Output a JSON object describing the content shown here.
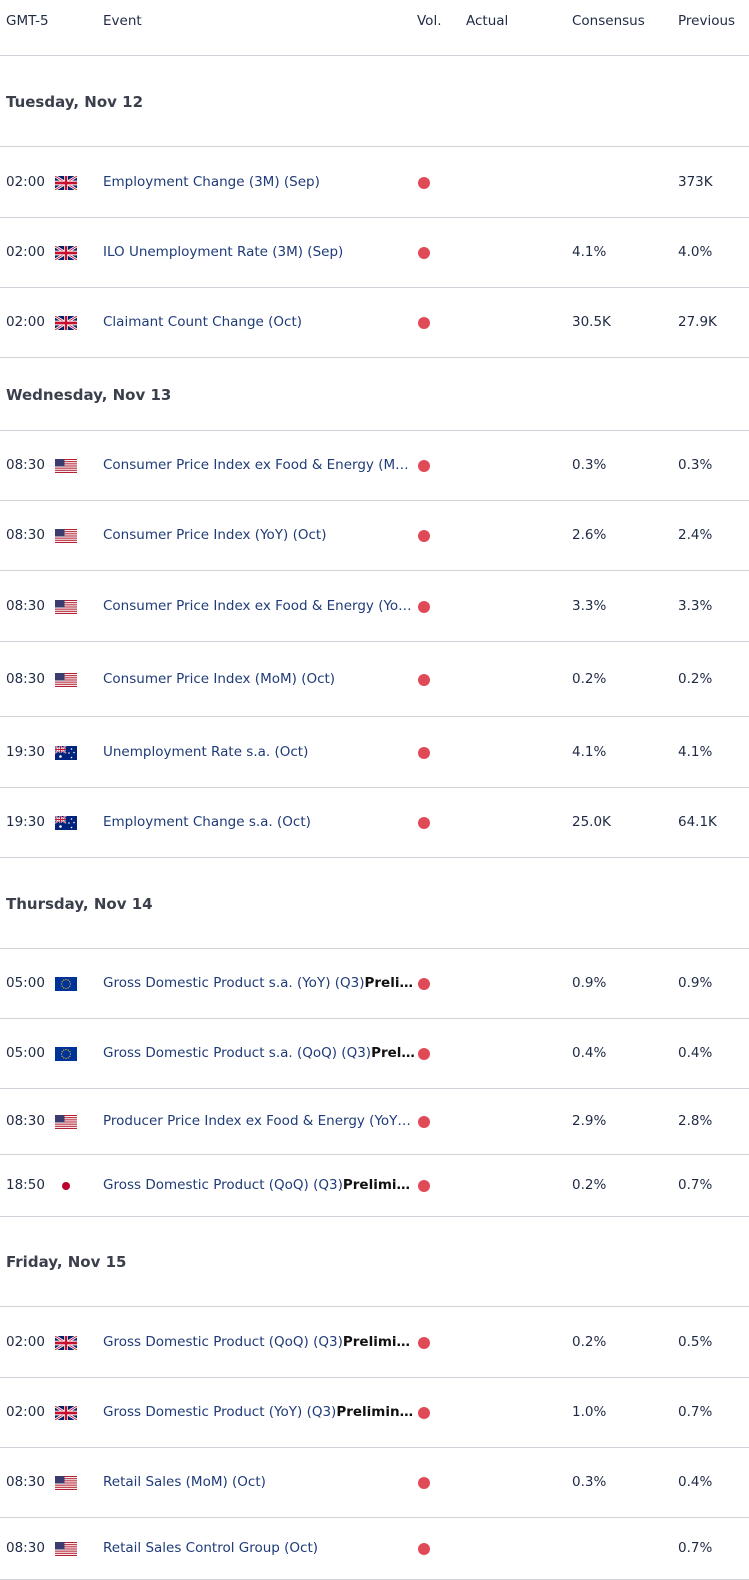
{
  "header": {
    "timezone": "GMT-5",
    "event": "Event",
    "vol": "Vol.",
    "actual": "Actual",
    "consensus": "Consensus",
    "previous": "Previous"
  },
  "colors": {
    "volatility_dot": "#e04a57",
    "event_text": "#1f3b78",
    "divider": "#cfd3d9"
  },
  "days": [
    {
      "label": "Tuesday, Nov 12",
      "events": [
        {
          "time": "02:00",
          "flag": "uk-flag-icon",
          "name": "Employment Change (3M) (Sep)",
          "bold": "",
          "actual": "",
          "consensus": "",
          "previous": "373K"
        },
        {
          "time": "02:00",
          "flag": "uk-flag-icon",
          "name": "ILO Unemployment Rate (3M) (Sep)",
          "bold": "",
          "actual": "",
          "consensus": "4.1%",
          "previous": "4.0%"
        },
        {
          "time": "02:00",
          "flag": "uk-flag-icon",
          "name": "Claimant Count Change (Oct)",
          "bold": "",
          "actual": "",
          "consensus": "30.5K",
          "previous": "27.9K"
        }
      ]
    },
    {
      "label": "Wednesday, Nov 13",
      "events": [
        {
          "time": "08:30",
          "flag": "us-flag-icon",
          "name": "Consumer Price Index ex Food & Energy (Mo…",
          "bold": "",
          "actual": "",
          "consensus": "0.3%",
          "previous": "0.3%"
        },
        {
          "time": "08:30",
          "flag": "us-flag-icon",
          "name": "Consumer Price Index (YoY) (Oct)",
          "bold": "",
          "actual": "",
          "consensus": "2.6%",
          "previous": "2.4%"
        },
        {
          "time": "08:30",
          "flag": "us-flag-icon",
          "name": "Consumer Price Index ex Food & Energy (Yo…",
          "bold": "",
          "actual": "",
          "consensus": "3.3%",
          "previous": "3.3%"
        },
        {
          "time": "08:30",
          "flag": "us-flag-icon",
          "name": "Consumer Price Index (MoM) (Oct)",
          "bold": "",
          "actual": "",
          "consensus": "0.2%",
          "previous": "0.2%"
        },
        {
          "time": "19:30",
          "flag": "au-flag-icon",
          "name": "Unemployment Rate s.a. (Oct)",
          "bold": "",
          "actual": "",
          "consensus": "4.1%",
          "previous": "4.1%"
        },
        {
          "time": "19:30",
          "flag": "au-flag-icon",
          "name": "Employment Change s.a. (Oct)",
          "bold": "",
          "actual": "",
          "consensus": "25.0K",
          "previous": "64.1K"
        }
      ]
    },
    {
      "label": "Thursday, Nov 14",
      "events": [
        {
          "time": "05:00",
          "flag": "eu-flag-icon",
          "name": "Gross Domestic Product s.a. (YoY) (Q3)",
          "bold": "Preli…",
          "actual": "",
          "consensus": "0.9%",
          "previous": "0.9%"
        },
        {
          "time": "05:00",
          "flag": "eu-flag-icon",
          "name": "Gross Domestic Product s.a. (QoQ) (Q3)",
          "bold": "Prel…",
          "actual": "",
          "consensus": "0.4%",
          "previous": "0.4%"
        },
        {
          "time": "08:30",
          "flag": "us-flag-icon",
          "name": "Producer Price Index ex Food & Energy (YoY)…",
          "bold": "",
          "actual": "",
          "consensus": "2.9%",
          "previous": "2.8%"
        },
        {
          "time": "18:50",
          "flag": "jp-flag-icon",
          "name": "Gross Domestic Product (QoQ) (Q3)",
          "bold": "Prelimi…",
          "actual": "",
          "consensus": "0.2%",
          "previous": "0.7%"
        }
      ]
    },
    {
      "label": "Friday, Nov 15",
      "events": [
        {
          "time": "02:00",
          "flag": "uk-flag-icon",
          "name": "Gross Domestic Product (QoQ) (Q3)",
          "bold": "Prelimi…",
          "actual": "",
          "consensus": "0.2%",
          "previous": "0.5%"
        },
        {
          "time": "02:00",
          "flag": "uk-flag-icon",
          "name": "Gross Domestic Product (YoY) (Q3)",
          "bold": "Prelimin…",
          "actual": "",
          "consensus": "1.0%",
          "previous": "0.7%"
        },
        {
          "time": "08:30",
          "flag": "us-flag-icon",
          "name": "Retail Sales (MoM) (Oct)",
          "bold": "",
          "actual": "",
          "consensus": "0.3%",
          "previous": "0.4%"
        },
        {
          "time": "08:30",
          "flag": "us-flag-icon",
          "name": "Retail Sales Control Group (Oct)",
          "bold": "",
          "actual": "",
          "consensus": "",
          "previous": "0.7%"
        }
      ]
    }
  ]
}
